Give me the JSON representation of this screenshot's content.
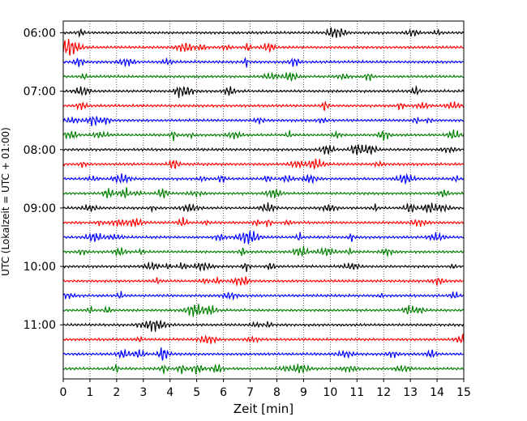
{
  "chart_data": {
    "type": "line",
    "title": "",
    "xlabel": "Zeit  [min]",
    "ylabel": "UTC (Lokalzeit = UTC + 01:00)",
    "xlim": [
      0,
      15
    ],
    "x_ticks": [
      "0",
      "1",
      "2",
      "3",
      "4",
      "5",
      "6",
      "7",
      "8",
      "9",
      "10",
      "11",
      "12",
      "13",
      "14",
      "15"
    ],
    "y_ticks": [
      "06:00",
      "07:00",
      "08:00",
      "09:00",
      "10:00",
      "11:00"
    ],
    "trace_interval_min": 15,
    "first_trace_time": "06:00",
    "trace_count": 24,
    "trace_colors": [
      "#000000",
      "#ff0000",
      "#0000ff",
      "#007f00"
    ],
    "grid": "vertical dotted",
    "traces": [
      {
        "start": "06:00",
        "color": "#000000"
      },
      {
        "start": "06:15",
        "color": "#ff0000"
      },
      {
        "start": "06:30",
        "color": "#0000ff"
      },
      {
        "start": "06:45",
        "color": "#007f00"
      },
      {
        "start": "07:00",
        "color": "#000000"
      },
      {
        "start": "07:15",
        "color": "#ff0000"
      },
      {
        "start": "07:30",
        "color": "#0000ff"
      },
      {
        "start": "07:45",
        "color": "#007f00"
      },
      {
        "start": "08:00",
        "color": "#000000"
      },
      {
        "start": "08:15",
        "color": "#ff0000"
      },
      {
        "start": "08:30",
        "color": "#0000ff"
      },
      {
        "start": "08:45",
        "color": "#007f00"
      },
      {
        "start": "09:00",
        "color": "#000000"
      },
      {
        "start": "09:15",
        "color": "#ff0000"
      },
      {
        "start": "09:30",
        "color": "#0000ff"
      },
      {
        "start": "09:45",
        "color": "#007f00"
      },
      {
        "start": "10:00",
        "color": "#000000"
      },
      {
        "start": "10:15",
        "color": "#ff0000"
      },
      {
        "start": "10:30",
        "color": "#0000ff"
      },
      {
        "start": "10:45",
        "color": "#007f00"
      },
      {
        "start": "11:00",
        "color": "#000000"
      },
      {
        "start": "11:15",
        "color": "#ff0000"
      },
      {
        "start": "11:30",
        "color": "#0000ff"
      },
      {
        "start": "11:45",
        "color": "#007f00"
      }
    ]
  }
}
